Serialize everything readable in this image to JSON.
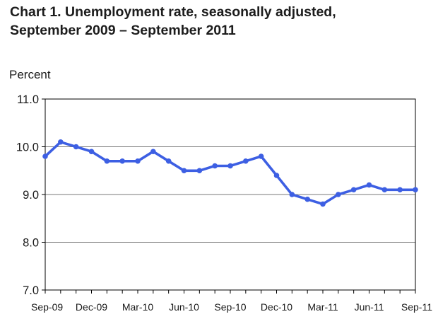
{
  "title_lines": [
    "Chart 1. Unemployment rate, seasonally adjusted,",
    "September 2009 – September 2011"
  ],
  "chart_data": {
    "type": "line",
    "title": "Chart 1. Unemployment rate, seasonally adjusted, September 2009 – September 2011",
    "ylabel": "Percent",
    "xlabel": "",
    "ylim": [
      7.0,
      11.0
    ],
    "yticks": [
      "7.0",
      "8.0",
      "9.0",
      "10.0",
      "11.0"
    ],
    "xticks": [
      "Sep-09",
      "Dec-09",
      "Mar-10",
      "Jun-10",
      "Sep-10",
      "Dec-10",
      "Mar-11",
      "Jun-11",
      "Sep-11"
    ],
    "grid": "horizontal",
    "x": [
      "Sep-09",
      "Oct-09",
      "Nov-09",
      "Dec-09",
      "Jan-10",
      "Feb-10",
      "Mar-10",
      "Apr-10",
      "May-10",
      "Jun-10",
      "Jul-10",
      "Aug-10",
      "Sep-10",
      "Oct-10",
      "Nov-10",
      "Dec-10",
      "Jan-11",
      "Feb-11",
      "Mar-11",
      "Apr-11",
      "May-11",
      "Jun-11",
      "Jul-11",
      "Aug-11",
      "Sep-11"
    ],
    "series": [
      {
        "values": [
          9.8,
          10.1,
          10.0,
          9.9,
          9.7,
          9.7,
          9.7,
          9.9,
          9.7,
          9.5,
          9.5,
          9.6,
          9.6,
          9.7,
          9.8,
          9.4,
          9.0,
          8.9,
          8.8,
          9.0,
          9.1,
          9.2,
          9.1,
          9.1,
          9.1
        ],
        "color": "#3d5fe3"
      }
    ]
  }
}
